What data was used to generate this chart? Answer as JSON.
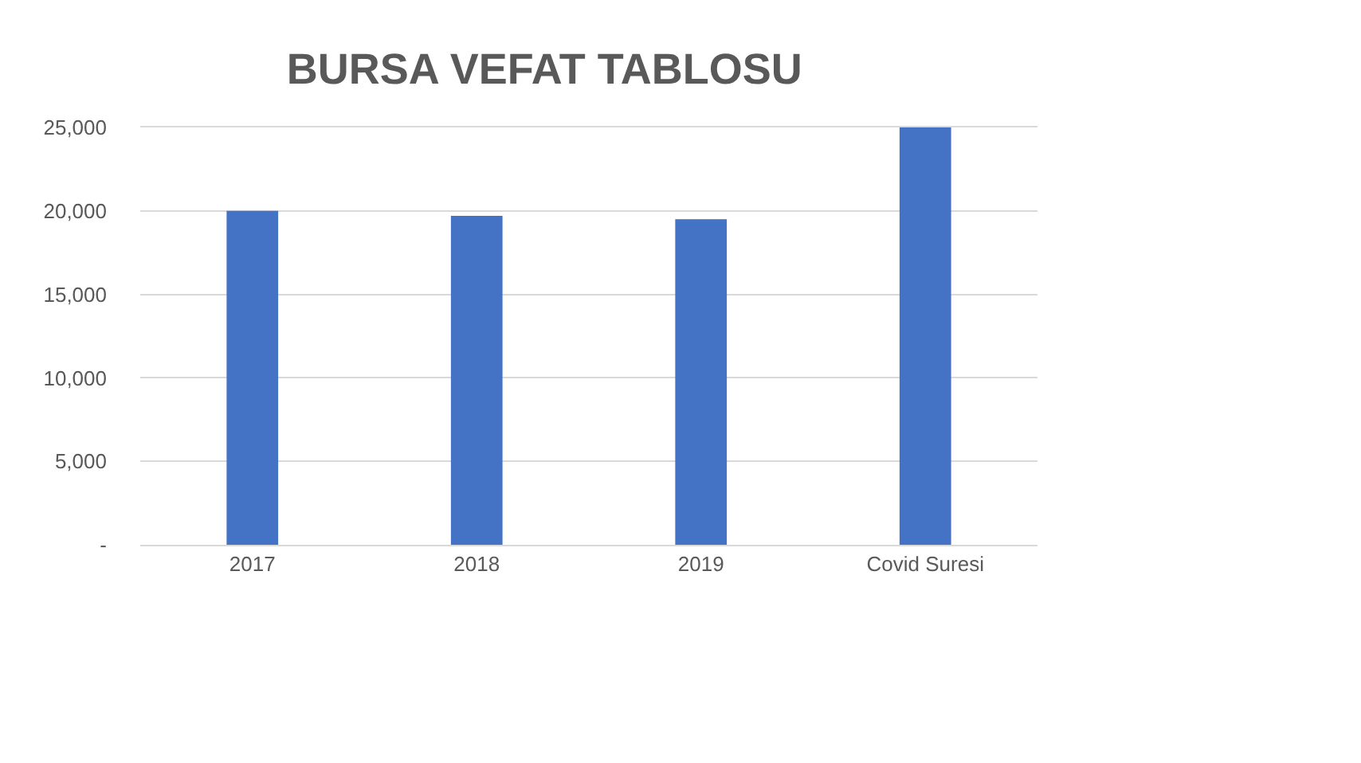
{
  "chart_data": {
    "type": "bar",
    "title": "BURSA VEFAT TABLOSU",
    "categories": [
      "2017",
      "2018",
      "2019",
      "Covid Suresi"
    ],
    "values": [
      20000,
      19700,
      19500,
      25000
    ],
    "color": "#4472c4",
    "ylim": [
      0,
      25000
    ],
    "yticks": [
      {
        "value": 0,
        "label": "-"
      },
      {
        "value": 5000,
        "label": "5,000"
      },
      {
        "value": 10000,
        "label": "10,000"
      },
      {
        "value": 15000,
        "label": "15,000"
      },
      {
        "value": 20000,
        "label": "20,000"
      },
      {
        "value": 25000,
        "label": "25,000"
      }
    ],
    "grid": "y"
  }
}
